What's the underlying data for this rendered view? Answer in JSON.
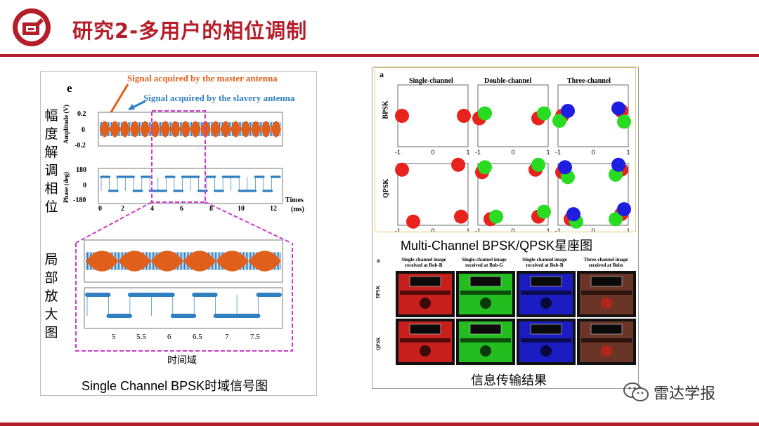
{
  "slide": {
    "title": "研究2-多用户的相位调制"
  },
  "left_figure": {
    "panel_tag": "e",
    "legend_master": "Signal acquired by the master antenna",
    "legend_slave": "Signal acquired by the slavery antenna",
    "amp_ylabel": "Amplitude (V)",
    "amp_ticks": [
      "0.2",
      "0",
      "-0.2"
    ],
    "phase_ylabel": "Phase (deg)",
    "phase_ticks": [
      "180",
      "0",
      "-180"
    ],
    "x_ticks": [
      "0",
      "2",
      "4",
      "6",
      "8",
      "10",
      "12"
    ],
    "x_label_1": "Times",
    "x_label_2": "(ms)",
    "zoom_x_ticks": [
      "5",
      "5.5",
      "6",
      "6.5",
      "7",
      "7.5"
    ],
    "side_label_top": [
      "幅",
      "度",
      "解",
      "调",
      "相",
      "位"
    ],
    "side_label_bottom": [
      "局",
      "部",
      "放",
      "大",
      "图"
    ],
    "domain_label": "时间域",
    "caption": "Single Channel BPSK时域信号图",
    "colors": {
      "master": "#e0601b",
      "slave": "#2f7fc1",
      "zoom_box": "#cc3ccc"
    }
  },
  "right_figure": {
    "panel_tag": "a",
    "col_titles": [
      "Single-channel",
      "Double-channel",
      "Three-channel"
    ],
    "row_titles": [
      "BPSK",
      "QPSK"
    ],
    "ticks": [
      "-1",
      "0",
      "1"
    ],
    "caption": "Multi-Channel BPSK/QPSK星座图",
    "images_tag": "a",
    "image_cols": [
      "Single-channel image received at Bob-R",
      "Single-channel image received at Bob-G",
      "Single-channel image received at Bob-B",
      "Three-channel image received at Bobs"
    ],
    "image_rows": [
      "BPSK",
      "QPSK"
    ],
    "bottom_caption": "信息传输结果",
    "colors": {
      "red": "#e8231e",
      "green": "#28dc22",
      "blue": "#1d1ee0",
      "frame": "#f2c96b"
    }
  },
  "watermark": {
    "text": "雷达学报",
    "icon": "wechat-icon"
  }
}
